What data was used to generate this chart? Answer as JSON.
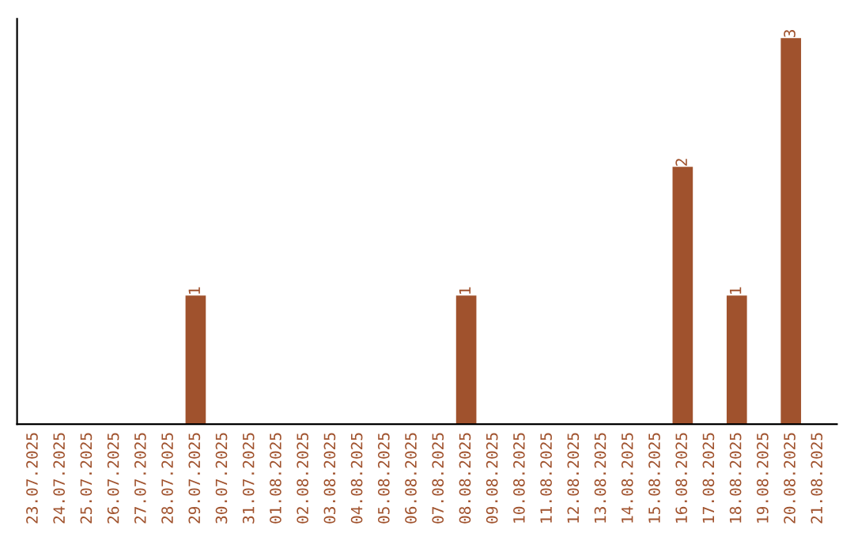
{
  "chart_data": {
    "type": "bar",
    "categories": [
      "23.07.2025",
      "24.07.2025",
      "25.07.2025",
      "26.07.2025",
      "27.07.2025",
      "28.07.2025",
      "29.07.2025",
      "30.07.2025",
      "31.07.2025",
      "01.08.2025",
      "02.08.2025",
      "03.08.2025",
      "04.08.2025",
      "05.08.2025",
      "06.08.2025",
      "07.08.2025",
      "08.08.2025",
      "09.08.2025",
      "10.08.2025",
      "11.08.2025",
      "12.08.2025",
      "13.08.2025",
      "14.08.2025",
      "15.08.2025",
      "16.08.2025",
      "17.08.2025",
      "18.08.2025",
      "19.08.2025",
      "20.08.2025",
      "21.08.2025"
    ],
    "values": [
      0,
      0,
      0,
      0,
      0,
      0,
      1,
      0,
      0,
      0,
      0,
      0,
      0,
      0,
      0,
      0,
      1,
      0,
      0,
      0,
      0,
      0,
      0,
      0,
      2,
      0,
      1,
      0,
      3,
      0
    ],
    "value_labels": [
      null,
      null,
      null,
      null,
      null,
      null,
      "1",
      null,
      null,
      null,
      null,
      null,
      null,
      null,
      null,
      null,
      "1",
      null,
      null,
      null,
      null,
      null,
      null,
      null,
      "2",
      null,
      "1",
      null,
      "3",
      null
    ],
    "color": "#a0522d",
    "tick_labels": "x"
  }
}
